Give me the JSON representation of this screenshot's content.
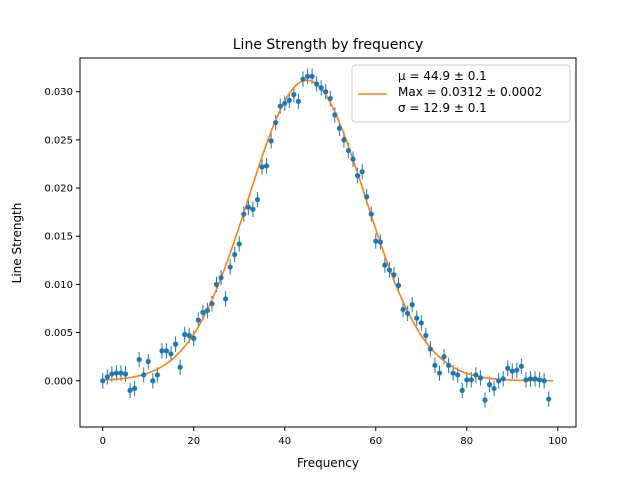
{
  "chart_data": {
    "type": "scatter",
    "title": "Line Strength by frequency",
    "xlabel": "Frequency",
    "ylabel": "Line Strength",
    "xlim": [
      -5,
      104
    ],
    "ylim": [
      -0.0048,
      0.0335
    ],
    "xticks": [
      0,
      20,
      40,
      60,
      80,
      100
    ],
    "xtick_labels": [
      "0",
      "20",
      "40",
      "60",
      "80",
      "100"
    ],
    "yticks": [
      0,
      0.005,
      0.01,
      0.015,
      0.02,
      0.025,
      0.03
    ],
    "ytick_labels": [
      "0.000",
      "0.005",
      "0.010",
      "0.015",
      "0.020",
      "0.025",
      "0.030"
    ],
    "grid": false,
    "legend_placement": "upper-right",
    "colors": {
      "points": "#1f77b4",
      "fit": "#ff7f0e"
    },
    "legend": {
      "lines": [
        "μ = 44.9 ± 0.1",
        "Max = 0.0312 ± 0.0002",
        "σ = 12.9 ± 0.1"
      ]
    },
    "fit": {
      "mu": 44.9,
      "max": 0.0312,
      "sigma": 12.9,
      "x_range": [
        0,
        99
      ]
    },
    "error_bar": 0.0008,
    "points": {
      "x": [
        0,
        1,
        2,
        3,
        4,
        5,
        6,
        7,
        8,
        9,
        10,
        11,
        12,
        13,
        14,
        15,
        16,
        17,
        18,
        19,
        20,
        21,
        22,
        23,
        24,
        25,
        26,
        27,
        28,
        29,
        30,
        31,
        32,
        33,
        34,
        35,
        36,
        37,
        38,
        39,
        40,
        41,
        42,
        43,
        44,
        45,
        46,
        47,
        48,
        49,
        50,
        51,
        52,
        53,
        54,
        55,
        56,
        57,
        58,
        59,
        60,
        61,
        62,
        63,
        64,
        65,
        66,
        67,
        68,
        69,
        70,
        71,
        72,
        73,
        74,
        75,
        76,
        77,
        78,
        79,
        80,
        81,
        82,
        83,
        84,
        85,
        86,
        87,
        88,
        89,
        90,
        91,
        92,
        93,
        94,
        95,
        96,
        97,
        98
      ],
      "y": [
        0.0,
        0.0004,
        0.0007,
        0.0008,
        0.0008,
        0.0007,
        -0.001,
        -0.0008,
        0.0022,
        0.0006,
        0.002,
        0.0,
        0.0006,
        0.0031,
        0.0031,
        0.0028,
        0.0038,
        0.0014,
        0.0048,
        0.0047,
        0.0044,
        0.0063,
        0.0071,
        0.0073,
        0.008,
        0.01,
        0.0107,
        0.0085,
        0.0118,
        0.0131,
        0.0142,
        0.0173,
        0.018,
        0.0178,
        0.0188,
        0.0222,
        0.0223,
        0.0249,
        0.0268,
        0.0285,
        0.0288,
        0.0291,
        0.0297,
        0.029,
        0.0313,
        0.0316,
        0.0316,
        0.0308,
        0.0304,
        0.03,
        0.0293,
        0.0276,
        0.0262,
        0.025,
        0.0239,
        0.023,
        0.0213,
        0.0217,
        0.0191,
        0.0173,
        0.0145,
        0.0144,
        0.012,
        0.0115,
        0.011,
        0.0099,
        0.0074,
        0.007,
        0.0079,
        0.0065,
        0.006,
        0.0047,
        0.0033,
        0.0016,
        0.0008,
        0.0025,
        0.0016,
        0.0008,
        0.0006,
        -0.001,
        0.0001,
        0.0001,
        0.0006,
        0.0003,
        -0.002,
        -0.0004,
        -0.0008,
        0.0,
        0.0002,
        0.0013,
        0.001,
        0.0011,
        0.0015,
        0.0001,
        0.0002,
        0.0002,
        0.0001,
        0.0,
        -0.0019
      ]
    }
  }
}
